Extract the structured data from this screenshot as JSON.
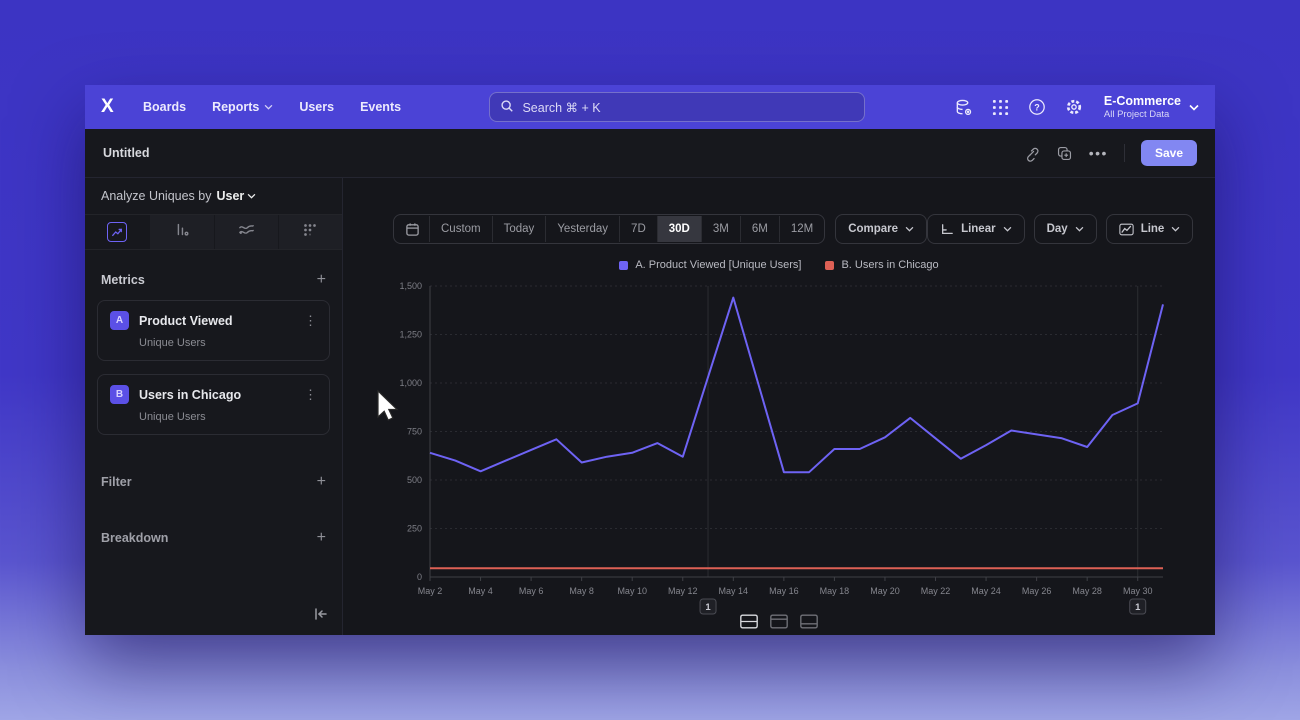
{
  "nav": {
    "logo": "X",
    "items": [
      {
        "label": "Boards",
        "chevron": false
      },
      {
        "label": "Reports",
        "chevron": true
      },
      {
        "label": "Users",
        "chevron": false
      },
      {
        "label": "Events",
        "chevron": false
      }
    ],
    "search_placeholder": "Search  ⌘ + K",
    "project": {
      "name": "E-Commerce",
      "subtitle": "All Project Data"
    }
  },
  "titlebar": {
    "title": "Untitled",
    "save_label": "Save"
  },
  "sidebar": {
    "analyze_label": "Analyze Uniques by",
    "analyze_value": "User",
    "metrics": {
      "title": "Metrics",
      "items": [
        {
          "letter": "A",
          "name": "Product Viewed",
          "subtitle": "Unique Users"
        },
        {
          "letter": "B",
          "name": "Users in Chicago",
          "subtitle": "Unique Users"
        }
      ]
    },
    "filter_title": "Filter",
    "breakdown_title": "Breakdown"
  },
  "controls": {
    "ranges": [
      "Custom",
      "Today",
      "Yesterday",
      "7D",
      "30D",
      "3M",
      "6M",
      "12M"
    ],
    "selected_range": "30D",
    "compare_label": "Compare",
    "scale_label": "Linear",
    "interval_label": "Day",
    "chart_type_label": "Line"
  },
  "legend": [
    {
      "label": "A. Product Viewed [Unique Users]",
      "color": "#6e63f4"
    },
    {
      "label": "B. Users in Chicago",
      "color": "#dd6055"
    }
  ],
  "chart_data": {
    "type": "line",
    "x": [
      "May 2",
      "May 3",
      "May 4",
      "May 5",
      "May 6",
      "May 7",
      "May 8",
      "May 9",
      "May 10",
      "May 11",
      "May 12",
      "May 13",
      "May 14",
      "May 15",
      "May 16",
      "May 17",
      "May 18",
      "May 19",
      "May 20",
      "May 21",
      "May 22",
      "May 23",
      "May 24",
      "May 25",
      "May 26",
      "May 27",
      "May 28",
      "May 29",
      "May 30",
      "May 31"
    ],
    "x_label_every": 2,
    "series": [
      {
        "name": "A. Product Viewed [Unique Users]",
        "color": "#6e63f4",
        "values": [
          640,
          600,
          545,
          600,
          655,
          710,
          590,
          620,
          640,
          690,
          620,
          1030,
          1440,
          990,
          540,
          540,
          660,
          660,
          720,
          820,
          715,
          610,
          680,
          755,
          735,
          715,
          670,
          835,
          895,
          1405
        ]
      },
      {
        "name": "B. Users in Chicago",
        "color": "#dd6055",
        "values": [
          45,
          45,
          45,
          45,
          45,
          45,
          45,
          45,
          45,
          45,
          45,
          45,
          45,
          45,
          45,
          45,
          45,
          45,
          45,
          45,
          45,
          45,
          45,
          45,
          45,
          45,
          45,
          45,
          45,
          45
        ]
      }
    ],
    "ylim": [
      0,
      1500
    ],
    "yticks": [
      0,
      250,
      500,
      750,
      1000,
      1250,
      1500
    ],
    "grid": "dashed-horizontal",
    "legend_position": "top-center",
    "annotations": [
      {
        "label": "1",
        "x_index": 11
      },
      {
        "label": "1",
        "x_index": 28
      }
    ]
  },
  "colors": {
    "navbar": "#4b43d6",
    "window_bg": "#16171c",
    "accent_purple": "#6e63f4",
    "series_red": "#dd6055",
    "save_button": "#8287f2"
  }
}
